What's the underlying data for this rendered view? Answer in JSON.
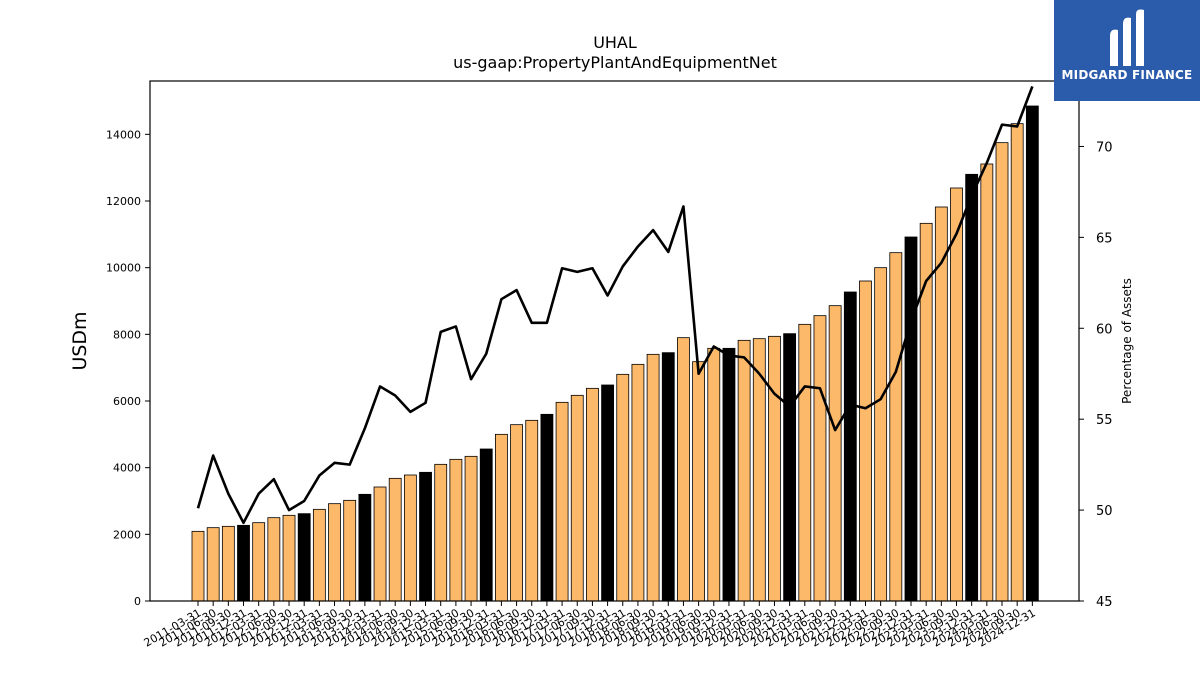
{
  "chart_data": {
    "type": "bar",
    "title": "UHAL",
    "subtitle": "us-gaap:PropertyPlantAndEquipmentNet",
    "ylabel": "USDm",
    "y2label": "Percentage of Assets",
    "ylim": [
      0,
      15600
    ],
    "y2lim": [
      45,
      73.6
    ],
    "yticks": [
      "0",
      "2000",
      "4000",
      "6000",
      "8000",
      "10000",
      "12000",
      "14000"
    ],
    "y2ticks": [
      "45",
      "50",
      "55",
      "60",
      "65",
      "70"
    ],
    "categories": [
      "2011-03-31",
      "2011-06-30",
      "2011-09-30",
      "2011-12-31",
      "2012-03-31",
      "2012-06-30",
      "2012-09-30",
      "2012-12-31",
      "2013-03-31",
      "2013-06-30",
      "2013-09-30",
      "2013-12-31",
      "2014-03-31",
      "2014-06-30",
      "2014-09-30",
      "2014-12-31",
      "2015-03-31",
      "2015-06-30",
      "2015-09-30",
      "2015-12-31",
      "2016-03-31",
      "2016-06-30",
      "2016-09-30",
      "2016-12-31",
      "2017-03-31",
      "2017-06-30",
      "2017-09-30",
      "2017-12-31",
      "2018-03-31",
      "2018-06-30",
      "2018-09-30",
      "2018-12-31",
      "2019-03-31",
      "2019-06-30",
      "2019-09-30",
      "2019-12-31",
      "2020-03-31",
      "2020-06-30",
      "2020-09-30",
      "2020-12-31",
      "2021-03-31",
      "2021-06-30",
      "2021-09-30",
      "2021-12-31",
      "2022-03-31",
      "2022-06-30",
      "2022-09-30",
      "2022-12-31",
      "2023-03-31",
      "2023-06-30",
      "2023-09-30",
      "2023-12-31",
      "2024-03-31",
      "2024-06-30",
      "2024-09-30",
      "2024-12-31"
    ],
    "series": [
      {
        "type": "bar",
        "values": [
          2090,
          2200,
          2240,
          2270,
          2350,
          2500,
          2570,
          2620,
          2750,
          2920,
          3020,
          3200,
          3420,
          3680,
          3780,
          3860,
          4100,
          4250,
          4340,
          4560,
          5000,
          5290,
          5420,
          5600,
          5960,
          6170,
          6380,
          6480,
          6800,
          7100,
          7400,
          7450,
          7900,
          7180,
          7580,
          7580,
          7820,
          7870,
          7940,
          8020,
          8300,
          8560,
          8860,
          9270,
          9600,
          10000,
          10450,
          10920,
          11330,
          11820,
          12390,
          12800,
          13110,
          13750,
          14320,
          14850
        ],
        "highlight_color": "#000000",
        "color": "#fdb96a",
        "highlight_every": 4,
        "highlight_offset": 3
      },
      {
        "type": "line",
        "axis": "y2",
        "values": [
          50.1,
          53.0,
          50.9,
          49.3,
          50.9,
          51.7,
          50.0,
          50.5,
          51.9,
          52.6,
          52.5,
          54.5,
          56.8,
          56.3,
          55.4,
          55.9,
          59.8,
          60.1,
          57.2,
          58.6,
          61.6,
          62.1,
          60.3,
          60.3,
          63.3,
          63.1,
          63.3,
          61.8,
          63.4,
          64.5,
          65.4,
          64.2,
          66.7,
          57.5,
          59.0,
          58.5,
          58.4,
          57.5,
          56.4,
          55.7,
          56.8,
          56.7,
          54.4,
          55.8,
          55.6,
          56.1,
          57.6,
          60.4,
          62.6,
          63.6,
          65.2,
          67.3,
          69.1,
          71.2,
          71.1,
          73.3
        ],
        "color": "#000000"
      }
    ]
  },
  "logo": {
    "text": "MIDGARD FINANCE"
  }
}
